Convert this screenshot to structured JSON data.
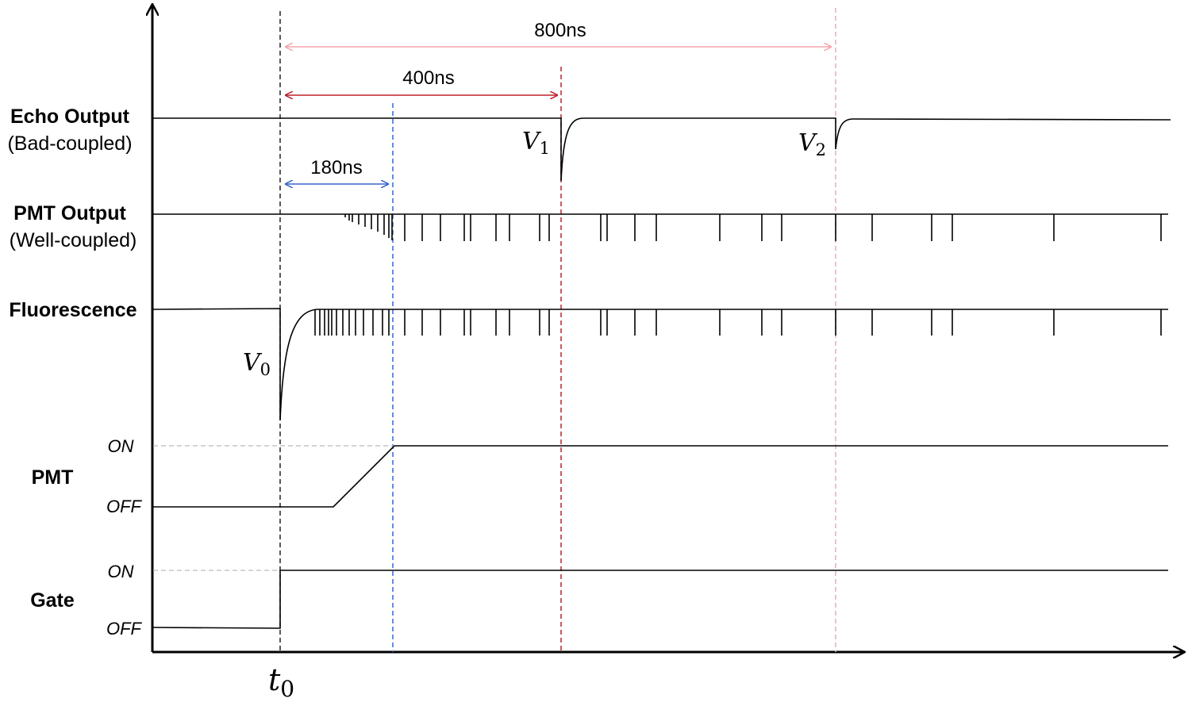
{
  "signals": [
    {
      "label": "Echo Output",
      "sublabel": "(Bad-coupled)"
    },
    {
      "label": "PMT Output",
      "sublabel": "(Well-coupled)"
    },
    {
      "label": "Fluorescence"
    },
    {
      "label": "PMT",
      "on": "ON",
      "off": "OFF"
    },
    {
      "label": "Gate",
      "on": "ON",
      "off": "OFF"
    }
  ],
  "intervals": [
    {
      "label": "800ns"
    },
    {
      "label": "400ns"
    },
    {
      "label": "180ns"
    }
  ],
  "markers": [
    {
      "symbol": "V",
      "subscript": "1"
    },
    {
      "symbol": "V",
      "subscript": "2"
    },
    {
      "symbol": "V",
      "subscript": "0"
    }
  ],
  "time_origin": {
    "symbol": "t",
    "subscript": "0"
  }
}
